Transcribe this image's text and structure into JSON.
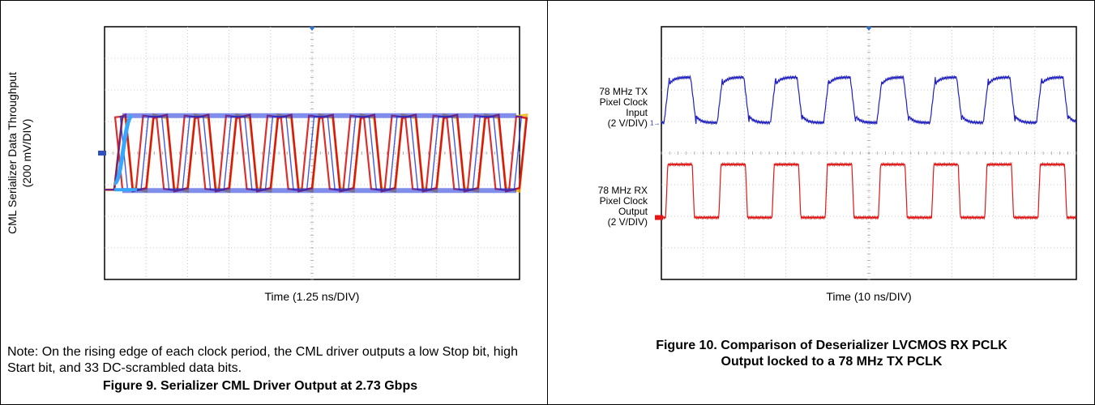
{
  "figure9": {
    "ylabel_line1": "CML Serializer Data Throughput",
    "ylabel_line2": "(200 mV/DIV)",
    "xlabel": "Time (1.25 ns/DIV)",
    "note": "Note: On the rising edge of each clock period, the CML driver outputs a low Stop bit, high Start bit, and 33 DC-scrambled data bits.",
    "caption": "Figure 9. Serializer CML Driver Output at 2.73 Gbps"
  },
  "figure10": {
    "ch1_label": [
      "78 MHz TX",
      "Pixel Clock",
      "Input",
      "(2 V/DIV)"
    ],
    "ch2_label": [
      "78 MHz RX",
      "Pixel Clock",
      "Output",
      "(2 V/DIV)"
    ],
    "xlabel": "Time (10 ns/DIV)",
    "caption_line1": "Figure 10. Comparison of Deserializer LVCMOS RX PCLK",
    "caption_line2": "Output locked to a 78 MHz TX PCLK"
  },
  "chart_data": [
    {
      "type": "line",
      "title": "",
      "xlabel": "Time (1.25 ns/DIV)",
      "ylabel": "CML Serializer Data Throughput (200 mV/DIV)",
      "x_divisions": 10,
      "y_divisions": 8,
      "grid": true,
      "description_values": {
        "transitions_per_10_div": 19,
        "levels": [
          "high",
          "low"
        ]
      },
      "colors": {
        "eye_primary": "#d81818",
        "eye_secondary": "#f0b000",
        "eye_tertiary": "#1a2fd8",
        "edge": "#35a7ff"
      }
    },
    {
      "type": "line",
      "title": "",
      "xlabel": "Time (10 ns/DIV)",
      "x_divisions": 10,
      "y_divisions": 8,
      "grid": true,
      "series": [
        {
          "name": "78 MHz TX Pixel Clock Input",
          "color": "#2020c0",
          "volts_per_div": 2,
          "frequency_mhz": 78,
          "cycles_shown": 7.8
        },
        {
          "name": "78 MHz RX Pixel Clock Output",
          "color": "#e01818",
          "volts_per_div": 2,
          "frequency_mhz": 78,
          "cycles_shown": 7.8
        }
      ]
    }
  ]
}
